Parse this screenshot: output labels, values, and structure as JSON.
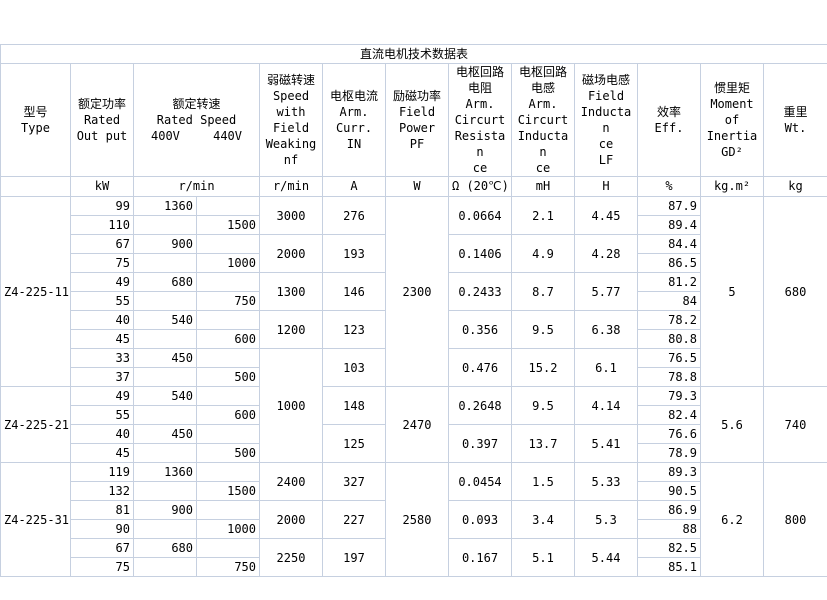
{
  "title": "直流电机技术数据表",
  "headers": {
    "type": [
      "型号",
      "Type"
    ],
    "output": [
      "额定功率",
      "Rated",
      "Out put"
    ],
    "speed": [
      "额定转速",
      "Rated Speed"
    ],
    "speed_400": "400V",
    "speed_440": "440V",
    "weak": [
      "弱磁转速",
      "Speed",
      "with",
      "Field",
      "Weaking",
      "nf"
    ],
    "curr": [
      "电枢电流",
      "Arm.",
      "Curr.",
      "IN"
    ],
    "fp": [
      "励磁功率",
      "Field",
      "Power",
      "PF"
    ],
    "res": [
      "电枢回路",
      "电阻",
      "Arm.",
      "Circurt",
      "Resistan",
      "ce"
    ],
    "ind": [
      "电枢回路",
      "电感",
      "Arm.",
      "Circurt",
      "Inductan",
      "ce"
    ],
    "find": [
      "磁场电感",
      "Field",
      "Inductan",
      "ce",
      "LF"
    ],
    "eff": [
      "效率",
      "Eff."
    ],
    "inertia": [
      "惯里矩",
      "Moment",
      "of",
      "Inertia",
      "GD²"
    ],
    "wt": [
      "重里",
      "Wt."
    ]
  },
  "units": [
    "kW",
    "r/min",
    "r/min",
    "A",
    "W",
    "Ω (20℃)",
    "mH",
    "H",
    "%",
    "kg.m²",
    "kg"
  ],
  "rows": {
    "output": [
      "99",
      "110",
      "67",
      "75",
      "49",
      "55",
      "40",
      "45",
      "33",
      "37",
      "49",
      "55",
      "40",
      "45",
      "119",
      "132",
      "81",
      "90",
      "67",
      "75"
    ],
    "speed_400": [
      "1360",
      "",
      "900",
      "",
      "680",
      "",
      "540",
      "",
      "450",
      "",
      "540",
      "",
      "450",
      "",
      "1360",
      "",
      "900",
      "",
      "680",
      ""
    ],
    "speed_440": [
      "",
      "1500",
      "",
      "1000",
      "",
      "750",
      "",
      "600",
      "",
      "500",
      "",
      "600",
      "",
      "500",
      "",
      "1500",
      "",
      "1000",
      "",
      "750"
    ],
    "eff": [
      "87.9",
      "89.4",
      "84.4",
      "86.5",
      "81.2",
      "84",
      "78.2",
      "80.8",
      "76.5",
      "78.8",
      "79.3",
      "82.4",
      "76.6",
      "78.9",
      "89.3",
      "90.5",
      "86.9",
      "88",
      "82.5",
      "85.1"
    ]
  },
  "spans": {
    "type": [
      {
        "v": "Z4-225-11",
        "n": 10
      },
      {
        "v": "Z4-225-21",
        "n": 4
      },
      {
        "v": "Z4-225-31",
        "n": 6
      }
    ],
    "weak": [
      {
        "v": "3000",
        "n": 2
      },
      {
        "v": "2000",
        "n": 2
      },
      {
        "v": "1300",
        "n": 2
      },
      {
        "v": "1200",
        "n": 2
      },
      {
        "v": "1000",
        "n": 6
      },
      {
        "v": "2400",
        "n": 2
      },
      {
        "v": "2000",
        "n": 2
      },
      {
        "v": "2250",
        "n": 2
      }
    ],
    "curr": [
      {
        "v": "276",
        "n": 2
      },
      {
        "v": "193",
        "n": 2
      },
      {
        "v": "146",
        "n": 2
      },
      {
        "v": "123",
        "n": 2
      },
      {
        "v": "103",
        "n": 2
      },
      {
        "v": "148",
        "n": 2
      },
      {
        "v": "125",
        "n": 2
      },
      {
        "v": "327",
        "n": 2
      },
      {
        "v": "227",
        "n": 2
      },
      {
        "v": "197",
        "n": 2
      }
    ],
    "fp": [
      {
        "v": "2300",
        "n": 10
      },
      {
        "v": "2470",
        "n": 4
      },
      {
        "v": "2580",
        "n": 6
      }
    ],
    "res": [
      {
        "v": "0.0664",
        "n": 2
      },
      {
        "v": "0.1406",
        "n": 2
      },
      {
        "v": "0.2433",
        "n": 2
      },
      {
        "v": "0.356",
        "n": 2
      },
      {
        "v": "0.476",
        "n": 2
      },
      {
        "v": "0.2648",
        "n": 2
      },
      {
        "v": "0.397",
        "n": 2
      },
      {
        "v": "0.0454",
        "n": 2
      },
      {
        "v": "0.093",
        "n": 2
      },
      {
        "v": "0.167",
        "n": 2
      }
    ],
    "ind": [
      {
        "v": "2.1",
        "n": 2
      },
      {
        "v": "4.9",
        "n": 2
      },
      {
        "v": "8.7",
        "n": 2
      },
      {
        "v": "9.5",
        "n": 2
      },
      {
        "v": "15.2",
        "n": 2
      },
      {
        "v": "9.5",
        "n": 2
      },
      {
        "v": "13.7",
        "n": 2
      },
      {
        "v": "1.5",
        "n": 2
      },
      {
        "v": "3.4",
        "n": 2
      },
      {
        "v": "5.1",
        "n": 2
      }
    ],
    "find": [
      {
        "v": "4.45",
        "n": 2
      },
      {
        "v": "4.28",
        "n": 2
      },
      {
        "v": "5.77",
        "n": 2
      },
      {
        "v": "6.38",
        "n": 2
      },
      {
        "v": "6.1",
        "n": 2
      },
      {
        "v": "4.14",
        "n": 2
      },
      {
        "v": "5.41",
        "n": 2
      },
      {
        "v": "5.33",
        "n": 2
      },
      {
        "v": "5.3",
        "n": 2
      },
      {
        "v": "5.44",
        "n": 2
      }
    ],
    "inertia": [
      {
        "v": "5",
        "n": 10
      },
      {
        "v": "5.6",
        "n": 4
      },
      {
        "v": "6.2",
        "n": 6
      }
    ],
    "wt": [
      {
        "v": "680",
        "n": 10
      },
      {
        "v": "740",
        "n": 4
      },
      {
        "v": "800",
        "n": 6
      }
    ]
  }
}
